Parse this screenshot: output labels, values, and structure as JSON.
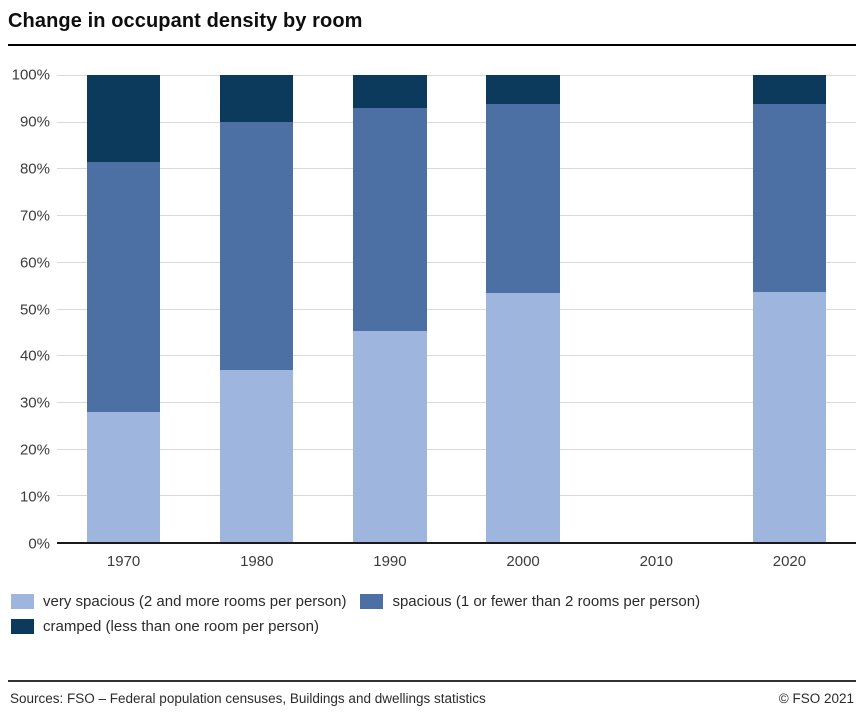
{
  "title": "Change in occupant density by room",
  "colors": {
    "axis": "#1a1a1a",
    "gridline": "#d9d9d9",
    "very_spacious": "#9eb5de",
    "spacious": "#4d70a4",
    "cramped": "#0b3a5c"
  },
  "chart_data": {
    "type": "bar",
    "stacked": true,
    "title": "Change in occupant density by room",
    "categories": [
      "1970",
      "1980",
      "1990",
      "2000",
      "2010",
      "2020"
    ],
    "series": [
      {
        "name": "very spacious (2 and more rooms per person)",
        "color": "#9eb5de",
        "values": [
          27.8,
          36.9,
          45.2,
          53.3,
          null,
          53.5
        ]
      },
      {
        "name": "spacious (1 or fewer than 2 rooms per person)",
        "color": "#4d70a4",
        "values": [
          53.5,
          53.1,
          47.8,
          40.5,
          null,
          40.2
        ]
      },
      {
        "name": "cramped (less than one room per person)",
        "color": "#0b3a5c",
        "values": [
          18.7,
          10.0,
          7.0,
          6.2,
          null,
          6.3
        ]
      }
    ],
    "y_ticks": [
      "100%",
      "90%",
      "80%",
      "70%",
      "60%",
      "50%",
      "40%",
      "30%",
      "20%",
      "10%",
      "0%"
    ],
    "ylim": [
      0,
      100
    ],
    "unit": "%",
    "grid": "horizontal",
    "legend_position": "bottom",
    "note": "no bar shown for 2010"
  },
  "footer": {
    "sources": "Sources: FSO – Federal population censuses, Buildings and dwellings statistics",
    "copyright": "© FSO 2021"
  }
}
